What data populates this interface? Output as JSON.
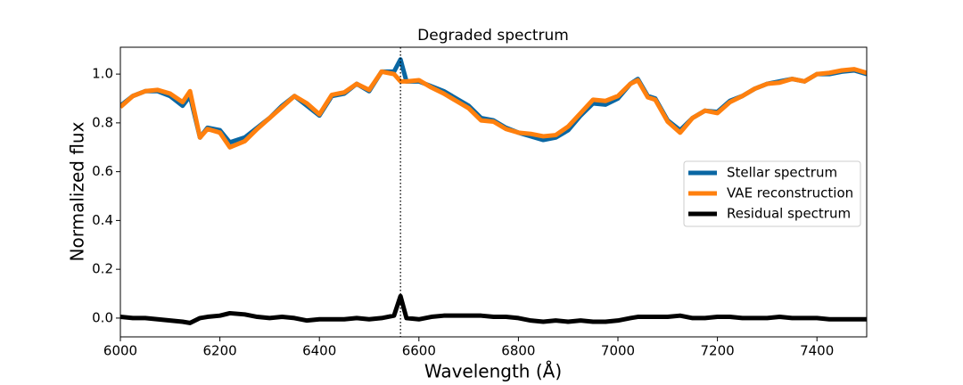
{
  "chart_data": {
    "type": "line",
    "title": "Degraded spectrum",
    "x_label": "Wavelength (Å)",
    "y_label": "Normalized flux",
    "x": [
      6000,
      6025,
      6050,
      6075,
      6100,
      6125,
      6140,
      6160,
      6175,
      6200,
      6220,
      6250,
      6275,
      6300,
      6325,
      6350,
      6375,
      6400,
      6425,
      6450,
      6475,
      6500,
      6525,
      6550,
      6563,
      6575,
      6600,
      6625,
      6650,
      6675,
      6700,
      6725,
      6750,
      6775,
      6800,
      6825,
      6850,
      6875,
      6900,
      6925,
      6950,
      6975,
      7000,
      7025,
      7040,
      7060,
      7075,
      7100,
      7125,
      7150,
      7175,
      7200,
      7225,
      7250,
      7275,
      7300,
      7325,
      7350,
      7375,
      7400,
      7425,
      7450,
      7475,
      7500
    ],
    "series": [
      {
        "name": "Stellar spectrum",
        "color": "#0a67a3",
        "values": [
          0.87,
          0.91,
          0.93,
          0.93,
          0.91,
          0.87,
          0.91,
          0.74,
          0.78,
          0.77,
          0.72,
          0.74,
          0.78,
          0.82,
          0.87,
          0.91,
          0.87,
          0.83,
          0.91,
          0.92,
          0.96,
          0.93,
          1.01,
          1.01,
          1.06,
          0.97,
          0.97,
          0.95,
          0.93,
          0.9,
          0.87,
          0.82,
          0.81,
          0.78,
          0.76,
          0.745,
          0.73,
          0.74,
          0.77,
          0.83,
          0.88,
          0.875,
          0.9,
          0.96,
          0.98,
          0.91,
          0.9,
          0.81,
          0.77,
          0.82,
          0.85,
          0.845,
          0.89,
          0.91,
          0.94,
          0.96,
          0.97,
          0.98,
          0.97,
          1.0,
          1.0,
          1.01,
          1.015,
          1.0
        ]
      },
      {
        "name": "VAE reconstruction",
        "color": "#ff800e",
        "values": [
          0.865,
          0.91,
          0.93,
          0.935,
          0.92,
          0.885,
          0.93,
          0.74,
          0.775,
          0.76,
          0.7,
          0.725,
          0.775,
          0.82,
          0.865,
          0.91,
          0.88,
          0.835,
          0.915,
          0.925,
          0.96,
          0.935,
          1.01,
          1.0,
          0.97,
          0.97,
          0.975,
          0.945,
          0.92,
          0.89,
          0.86,
          0.81,
          0.805,
          0.775,
          0.76,
          0.755,
          0.745,
          0.75,
          0.785,
          0.84,
          0.895,
          0.89,
          0.91,
          0.96,
          0.975,
          0.905,
          0.895,
          0.805,
          0.76,
          0.82,
          0.85,
          0.84,
          0.885,
          0.91,
          0.94,
          0.96,
          0.965,
          0.98,
          0.97,
          1.0,
          1.005,
          1.015,
          1.02,
          1.005
        ]
      },
      {
        "name": "Residual spectrum",
        "color": "#000000",
        "values": [
          0.005,
          0.0,
          0.0,
          -0.005,
          -0.01,
          -0.015,
          -0.02,
          0.0,
          0.005,
          0.01,
          0.02,
          0.015,
          0.005,
          0.0,
          0.005,
          0.0,
          -0.01,
          -0.005,
          -0.005,
          -0.005,
          0.0,
          -0.005,
          0.0,
          0.01,
          0.09,
          0.0,
          -0.005,
          0.005,
          0.01,
          0.01,
          0.01,
          0.01,
          0.005,
          0.005,
          0.0,
          -0.01,
          -0.015,
          -0.01,
          -0.015,
          -0.01,
          -0.015,
          -0.015,
          -0.01,
          0.0,
          0.005,
          0.005,
          0.005,
          0.005,
          0.01,
          0.0,
          0.0,
          0.005,
          0.005,
          0.0,
          0.0,
          0.0,
          0.005,
          0.0,
          0.0,
          0.0,
          -0.005,
          -0.005,
          -0.005,
          -0.005
        ]
      }
    ],
    "vlines": [
      6563
    ],
    "xlim": [
      6000,
      7500
    ],
    "xticks": [
      6000,
      6200,
      6400,
      6600,
      6800,
      7000,
      7200,
      7400
    ],
    "ylim": [
      -0.077,
      1.11
    ],
    "yticks": [
      {
        "value": 0,
        "label": "0.0"
      },
      0.2,
      0.4,
      0.6,
      0.8,
      {
        "value": 1,
        "label": "1.0"
      }
    ],
    "legend": "center right",
    "grid": false
  }
}
